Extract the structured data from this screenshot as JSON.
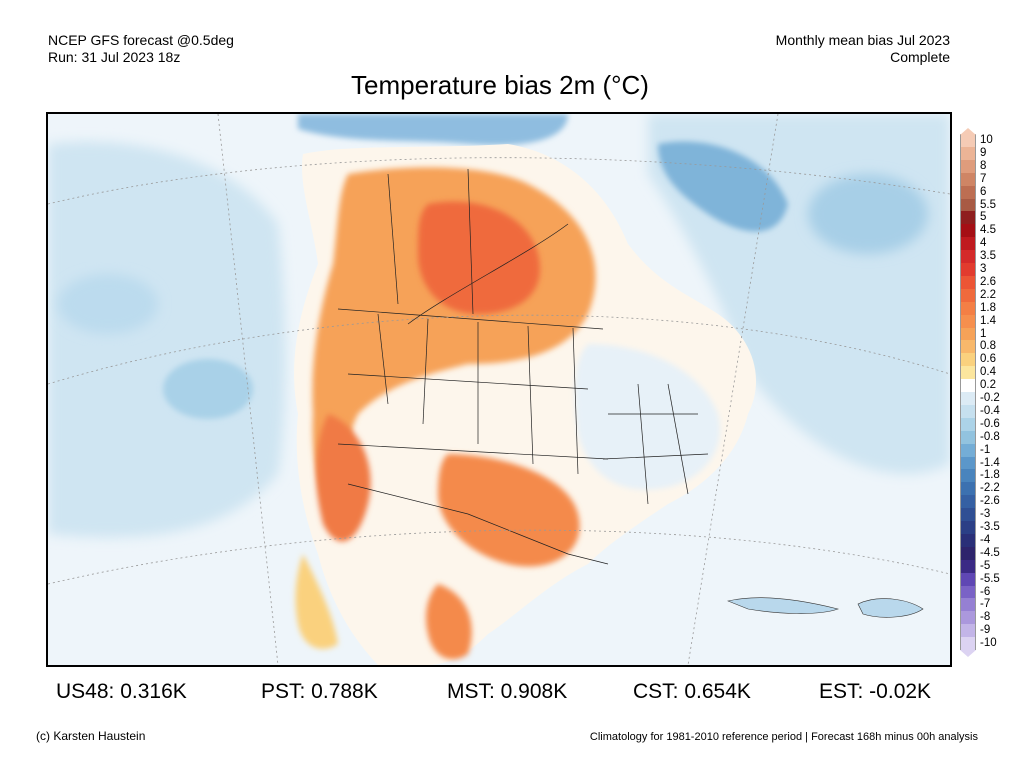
{
  "header": {
    "model": "NCEP GFS forecast @0.5deg",
    "run": "Run: 31 Jul 2023 18z",
    "bias_period": "Monthly mean bias Jul 2023",
    "status": "Complete"
  },
  "title": "Temperature bias 2m (°C)",
  "legend": {
    "labels": [
      "10",
      "9",
      "8",
      "7",
      "6",
      "5.5",
      "5",
      "4.5",
      "4",
      "3.5",
      "3",
      "2.6",
      "2.2",
      "1.8",
      "1.4",
      "1",
      "0.8",
      "0.6",
      "0.4",
      "0.2",
      "-0.2",
      "-0.4",
      "-0.6",
      "-0.8",
      "-1",
      "-1.4",
      "-1.8",
      "-2.2",
      "-2.6",
      "-3",
      "-3.5",
      "-4",
      "-4.5",
      "-5",
      "-5.5",
      "-6",
      "-7",
      "-8",
      "-9",
      "-10"
    ],
    "colors": [
      "#f5cbb5",
      "#ecb496",
      "#df9c7c",
      "#cf8565",
      "#bd6e52",
      "#a85a44",
      "#8f1e1e",
      "#a50f15",
      "#bf1a1f",
      "#d42a2a",
      "#e23b2e",
      "#ec5535",
      "#f06a3c",
      "#f47f45",
      "#f68f4e",
      "#f6a258",
      "#f8b86b",
      "#fad17e",
      "#fce69e",
      "#ffffff",
      "#dcebf5",
      "#c6e0ef",
      "#acd3e8",
      "#92c3df",
      "#74add6",
      "#5b97ca",
      "#4984bd",
      "#3c71b0",
      "#3560a3",
      "#2f4f94",
      "#2b3f86",
      "#2a2f78",
      "#2e246c",
      "#3b2a85",
      "#5f47b4",
      "#7a62c6",
      "#9580d3",
      "#ab98dd",
      "#c3b5e8",
      "#dcd3f2"
    ]
  },
  "stats": [
    {
      "label": "US48: 0.316K"
    },
    {
      "label": "PST: 0.788K"
    },
    {
      "label": "MST: 0.908K"
    },
    {
      "label": "CST: 0.654K"
    },
    {
      "label": "EST: -0.02K"
    }
  ],
  "footer": {
    "copyright": "(c) Karsten Haustein",
    "note": "Climatology for 1981-2010 reference period | Forecast 168h minus 00h analysis"
  }
}
